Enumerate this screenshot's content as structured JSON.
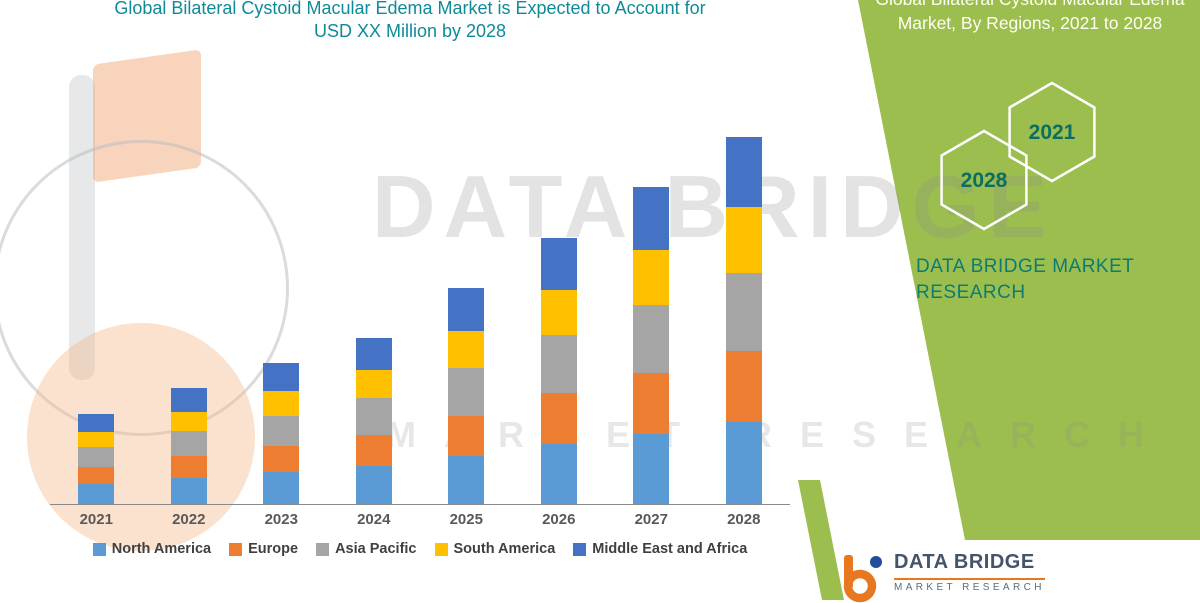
{
  "colors": {
    "panel_green": "#9CBE4E",
    "title_teal": "#0E8A99",
    "brand_teal": "#0A7C74",
    "hexagon_year_text": "#0A6E62",
    "axis_label": "#595959",
    "legend_text": "#404040",
    "logo_orange": "#E87722",
    "logo_blue": "#1F4E9C",
    "logo_name_text": "#44546A",
    "watermark": "#8C8C8C"
  },
  "chart_data": {
    "type": "bar",
    "stacked": true,
    "title": "Global Bilateral Cystoid Macular Edema Market is Expected to Account for USD XX Million by 2028",
    "xlabel": "",
    "ylabel": "",
    "y_axis_labels_visible": false,
    "grid": false,
    "legend_position": "bottom",
    "unit_note": "Values undisclosed (USD XX Million); series values are relative estimates read from bar heights",
    "categories": [
      "2021",
      "2022",
      "2023",
      "2024",
      "2025",
      "2026",
      "2027",
      "2028"
    ],
    "series": [
      {
        "name": "North America",
        "color": "#5B9BD5",
        "values": [
          20,
          26,
          32,
          38,
          48,
          60,
          70,
          82
        ]
      },
      {
        "name": "Europe",
        "color": "#ED7D31",
        "values": [
          17,
          22,
          26,
          31,
          40,
          50,
          60,
          70
        ]
      },
      {
        "name": "Asia Pacific",
        "color": "#A5A5A5",
        "values": [
          20,
          25,
          30,
          36,
          47,
          58,
          68,
          78
        ]
      },
      {
        "name": "South America",
        "color": "#FFC000",
        "values": [
          15,
          19,
          24,
          28,
          37,
          45,
          55,
          65
        ]
      },
      {
        "name": "Middle East and Africa",
        "color": "#4472C4",
        "values": [
          18,
          23,
          28,
          32,
          43,
          52,
          62,
          70
        ]
      }
    ],
    "totals": [
      90,
      115,
      140,
      165,
      215,
      265,
      315,
      365
    ]
  },
  "side_panel": {
    "heading": "Global Bilateral Cystoid Macular Edema Market, By Regions, 2021 to 2028",
    "hexagon_back": "2028",
    "hexagon_front": "2021",
    "brand": "DATA BRIDGE MARKET RESEARCH"
  },
  "watermark": {
    "brand": "DATA BRIDGE",
    "sub": "MARKET RESEARCH"
  },
  "footer_logo": {
    "name": "DATA BRIDGE",
    "subtitle": "MARKET RESEARCH"
  }
}
